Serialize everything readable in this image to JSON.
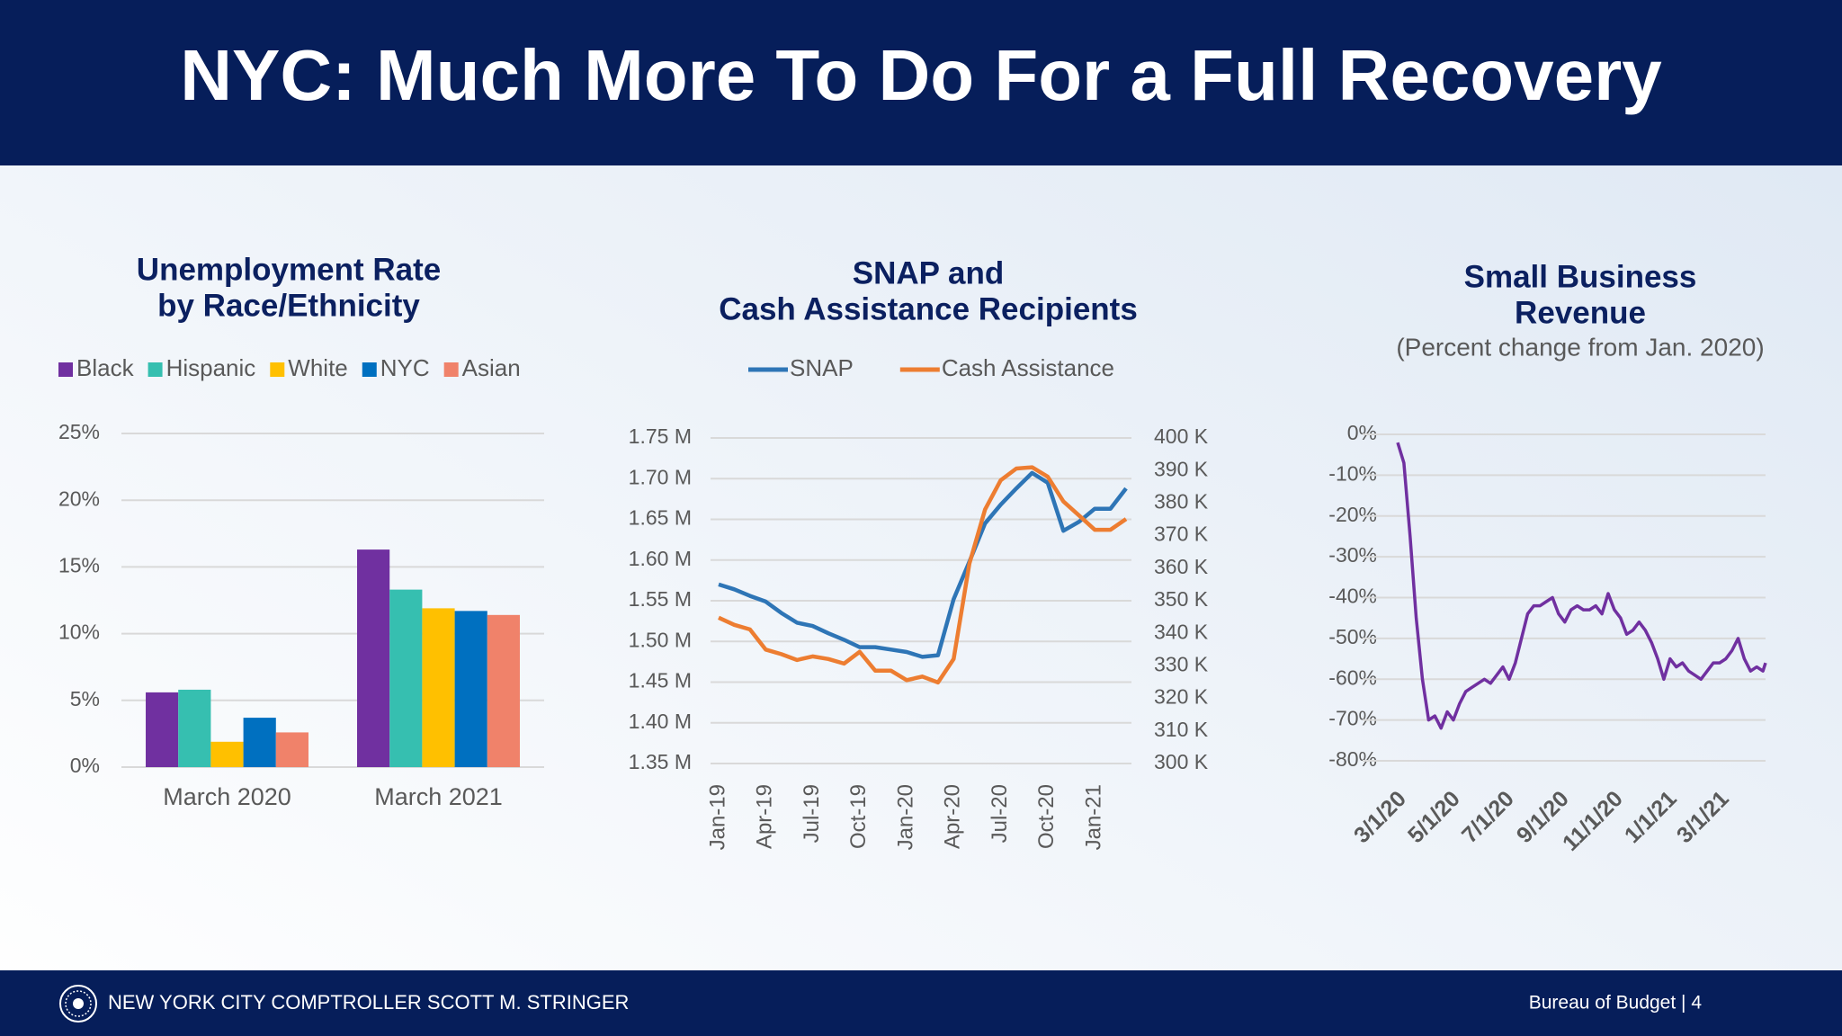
{
  "slide_title": "NYC: Much More To Do For a Full Recovery",
  "footer": {
    "left": "NEW YORK CITY COMPTROLLER SCOTT M. STRINGER",
    "right": "Bureau of Budget | 4"
  },
  "chart_data": [
    {
      "type": "bar",
      "title": [
        "Unemployment Rate",
        "by Race/Ethnicity"
      ],
      "categories": [
        "March 2020",
        "March 2021"
      ],
      "series": [
        {
          "name": "Black",
          "color": "#7030a0",
          "values": [
            5.6,
            16.3
          ]
        },
        {
          "name": "Hispanic",
          "color": "#36bfb0",
          "values": [
            5.8,
            13.3
          ]
        },
        {
          "name": "White",
          "color": "#ffc000",
          "values": [
            1.9,
            11.9
          ]
        },
        {
          "name": "NYC",
          "color": "#0070c0",
          "values": [
            3.7,
            11.7
          ]
        },
        {
          "name": "Asian",
          "color": "#f0826a",
          "values": [
            2.6,
            11.4
          ]
        }
      ],
      "ylim": [
        0,
        25
      ],
      "yticks": [
        {
          "value": 0,
          "label": "0%"
        },
        {
          "value": 5,
          "label": "5%"
        },
        {
          "value": 10,
          "label": "10%"
        },
        {
          "value": 15,
          "label": "15%"
        },
        {
          "value": 20,
          "label": "20%"
        },
        {
          "value": 25,
          "label": "25%"
        }
      ],
      "grid": true,
      "legend": "top"
    },
    {
      "type": "line",
      "title": [
        "SNAP and",
        "Cash Assistance Recipients"
      ],
      "categories": [
        "Jan-19",
        null,
        null,
        "Apr-19",
        null,
        null,
        "Jul-19",
        null,
        null,
        "Oct-19",
        null,
        null,
        "Jan-20",
        null,
        null,
        "Apr-20",
        null,
        null,
        "Jul-20",
        null,
        null,
        "Oct-20",
        null,
        null,
        "Jan-21",
        null,
        null
      ],
      "series": [
        {
          "name": "SNAP",
          "color": "#2e75b6",
          "values": [
            1.57,
            1.564,
            1.556,
            1.549,
            1.535,
            1.523,
            1.519,
            1.51,
            1.502,
            1.493,
            1.493,
            1.49,
            1.487,
            1.481,
            1.483,
            1.552,
            1.598,
            1.645,
            1.668,
            1.688,
            1.707,
            1.695,
            1.636,
            1.647,
            1.663,
            1.663,
            1.688
          ]
        },
        {
          "name": "Cash Assistance",
          "color": "#ed7d31",
          "axis": "y2",
          "values": [
            344.8,
            342.6,
            341.2,
            335.0,
            333.6,
            331.8,
            332.9,
            332.1,
            330.7,
            334.3,
            328.5,
            328.5,
            325.6,
            326.7,
            324.9,
            332.1,
            361.4,
            378.0,
            387.0,
            390.6,
            391.0,
            388.1,
            380.5,
            376.2,
            371.8,
            371.8,
            375.1
          ]
        }
      ],
      "ylim": [
        1.35,
        1.75
      ],
      "yticks": [
        {
          "value": 1.35,
          "label": "1.35 M"
        },
        {
          "value": 1.4,
          "label": "1.40 M"
        },
        {
          "value": 1.45,
          "label": "1.45 M"
        },
        {
          "value": 1.5,
          "label": "1.50 M"
        },
        {
          "value": 1.55,
          "label": "1.55 M"
        },
        {
          "value": 1.6,
          "label": "1.60 M"
        },
        {
          "value": 1.65,
          "label": "1.65 M"
        },
        {
          "value": 1.7,
          "label": "1.70 M"
        },
        {
          "value": 1.75,
          "label": "1.75 M"
        }
      ],
      "y2lim": [
        300,
        400
      ],
      "y2ticks": [
        {
          "value": 300,
          "label": "300 K"
        },
        {
          "value": 310,
          "label": "310 K"
        },
        {
          "value": 320,
          "label": "320 K"
        },
        {
          "value": 330,
          "label": "330 K"
        },
        {
          "value": 340,
          "label": "340 K"
        },
        {
          "value": 350,
          "label": "350 K"
        },
        {
          "value": 360,
          "label": "360 K"
        },
        {
          "value": 370,
          "label": "370 K"
        },
        {
          "value": 380,
          "label": "380 K"
        },
        {
          "value": 390,
          "label": "390 K"
        },
        {
          "value": 400,
          "label": "400 K"
        }
      ],
      "grid": true,
      "legend": "top"
    },
    {
      "type": "line",
      "title": [
        "Small Business",
        "Revenue"
      ],
      "subtitle": "(Percent change from Jan. 2020)",
      "x": [
        "3/1/20",
        "3/8/20",
        "3/15/20",
        "3/22/20",
        "3/29/20",
        "4/5/20",
        "4/12/20",
        "4/19/20",
        "4/26/20",
        "5/3/20",
        "5/10/20",
        "5/17/20",
        "5/24/20",
        "5/31/20",
        "6/7/20",
        "6/14/20",
        "6/21/20",
        "6/28/20",
        "7/5/20",
        "7/12/20",
        "7/19/20",
        "7/26/20",
        "8/2/20",
        "8/9/20",
        "8/16/20",
        "8/23/20",
        "8/30/20",
        "9/6/20",
        "9/13/20",
        "9/20/20",
        "9/27/20",
        "10/4/20",
        "10/11/20",
        "10/18/20",
        "10/25/20",
        "11/1/20",
        "11/8/20",
        "11/15/20",
        "11/22/20",
        "11/29/20",
        "12/6/20",
        "12/13/20",
        "12/20/20",
        "12/27/20",
        "1/3/21",
        "1/10/21",
        "1/17/21",
        "1/24/21",
        "1/31/21",
        "2/7/21",
        "2/14/21",
        "2/21/21",
        "2/28/21",
        "3/7/21",
        "3/14/21",
        "3/21/21",
        "3/28/21",
        "4/4/21",
        "4/11/21",
        "4/18/21",
        "4/21/21"
      ],
      "color": "#7030a0",
      "values": [
        -2,
        -7,
        -25,
        -45,
        -60,
        -70,
        -69,
        -72,
        -68,
        -70,
        -66,
        -63,
        -62,
        -61,
        -60,
        -61,
        -59,
        -57,
        -60,
        -56,
        -50,
        -44,
        -42,
        -42,
        -41,
        -40,
        -44,
        -46,
        -43,
        -42,
        -43,
        -43,
        -42,
        -44,
        -39,
        -43,
        -45,
        -49,
        -48,
        -46,
        -48,
        -51,
        -55,
        -60,
        -55,
        -57,
        -56,
        -58,
        -59,
        -60,
        -58,
        -56,
        -56,
        -55,
        -53,
        -50,
        -55,
        -58,
        -57,
        -58,
        -56
      ],
      "xlim": [
        "3/1/20",
        "4/21/21"
      ],
      "xticks": [
        "3/1/20",
        "5/1/20",
        "7/1/20",
        "9/1/20",
        "11/1/20",
        "1/1/21",
        "3/1/21"
      ],
      "ylim": [
        -80,
        0
      ],
      "yticks": [
        {
          "value": 0,
          "label": "0%"
        },
        {
          "value": -10,
          "label": "-10%"
        },
        {
          "value": -20,
          "label": "-20%"
        },
        {
          "value": -30,
          "label": "-30%"
        },
        {
          "value": -40,
          "label": "-40%"
        },
        {
          "value": -50,
          "label": "-50%"
        },
        {
          "value": -60,
          "label": "-60%"
        },
        {
          "value": -70,
          "label": "-70%"
        },
        {
          "value": -80,
          "label": "-80%"
        }
      ],
      "grid": true
    }
  ]
}
